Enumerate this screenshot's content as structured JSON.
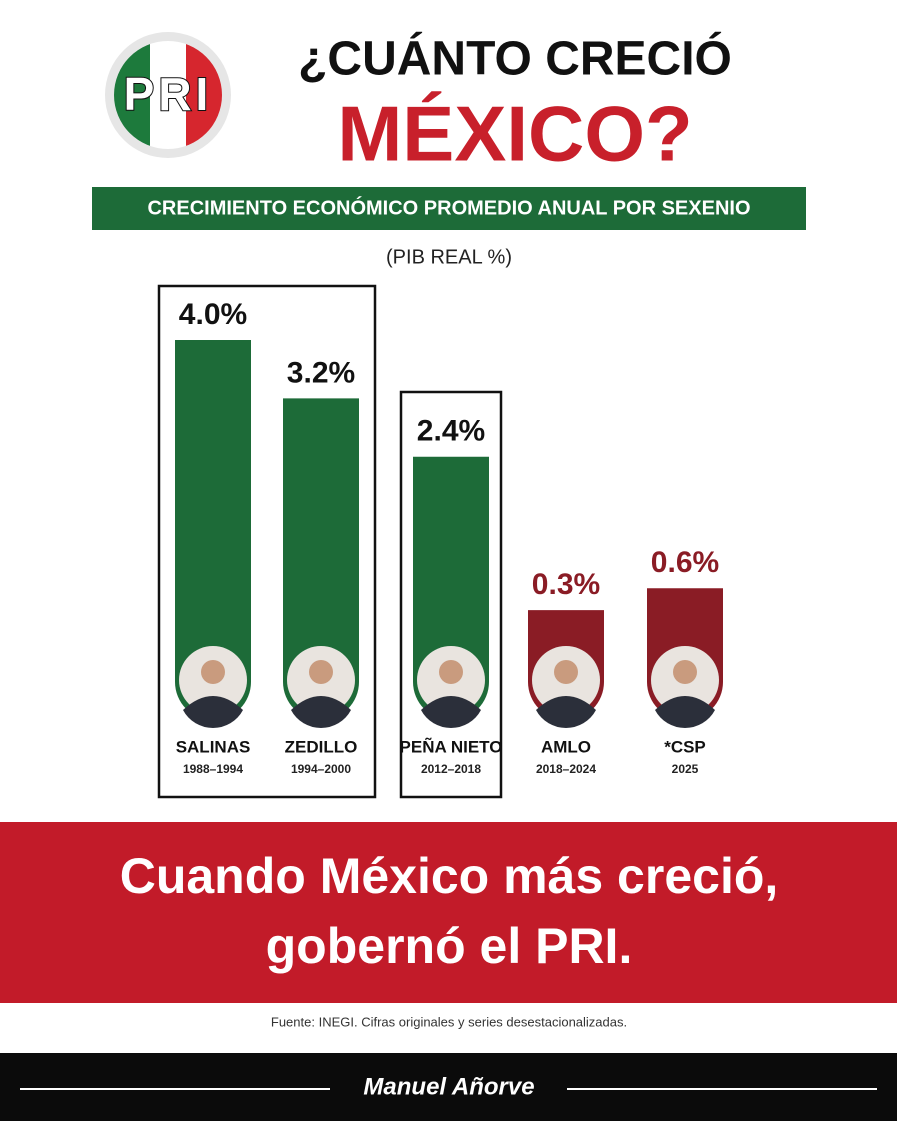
{
  "logo_text": "PRI",
  "chart_data": {
    "type": "bar",
    "title": [
      "¿CUÁNTO CRECIÓ",
      "MÉXICO?"
    ],
    "subtitle": "CRECIMIENTO ECONÓMICO PROMEDIO ANUAL POR SEXENIO",
    "unit_label": "(PIB REAL %)",
    "categories": [
      "SALINAS",
      "ZEDILLO",
      "PEÑA NIETO",
      "AMLO",
      "*CSP"
    ],
    "periods": [
      "1988–1994",
      "1994–2000",
      "2012–2018",
      "2018–2024",
      "2025"
    ],
    "values": [
      4.0,
      3.2,
      2.4,
      0.3,
      0.6
    ],
    "value_labels": [
      "4.0%",
      "3.2%",
      "2.4%",
      "0.3%",
      "0.6%"
    ],
    "colors": [
      "#1d6b38",
      "#1d6b38",
      "#1d6b38",
      "#8a1c25",
      "#8a1c25"
    ],
    "value_label_colors": [
      "#111111",
      "#111111",
      "#111111",
      "#8a1c25",
      "#8a1c25"
    ]
  },
  "headline": [
    "Cuando México más creció,",
    "gobernó el PRI."
  ],
  "source": "Fuente: INEGI. Cifras originales y series desestacionalizadas.",
  "signature": "Manuel Añorve"
}
